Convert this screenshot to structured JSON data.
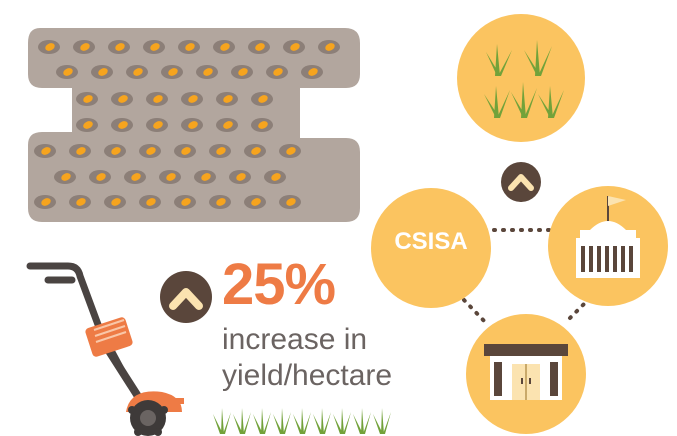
{
  "stat": {
    "percent": "25%",
    "line1": "increase in",
    "line2": "yield/hectare"
  },
  "network": {
    "center_label": "CSISA"
  },
  "icons": {
    "up_arrow": "chevron-up-icon",
    "field": "planted-field-icon",
    "tiller": "tiller-icon",
    "crop": "crop-icon",
    "government": "government-building-icon",
    "market": "shop-icon"
  },
  "colors": {
    "soil": "#B2A69E",
    "seed": "#F6A41E",
    "accent": "#EE7B45",
    "circle": "#FBC460",
    "dark": "#5a463b",
    "grass": "#72A23A"
  }
}
